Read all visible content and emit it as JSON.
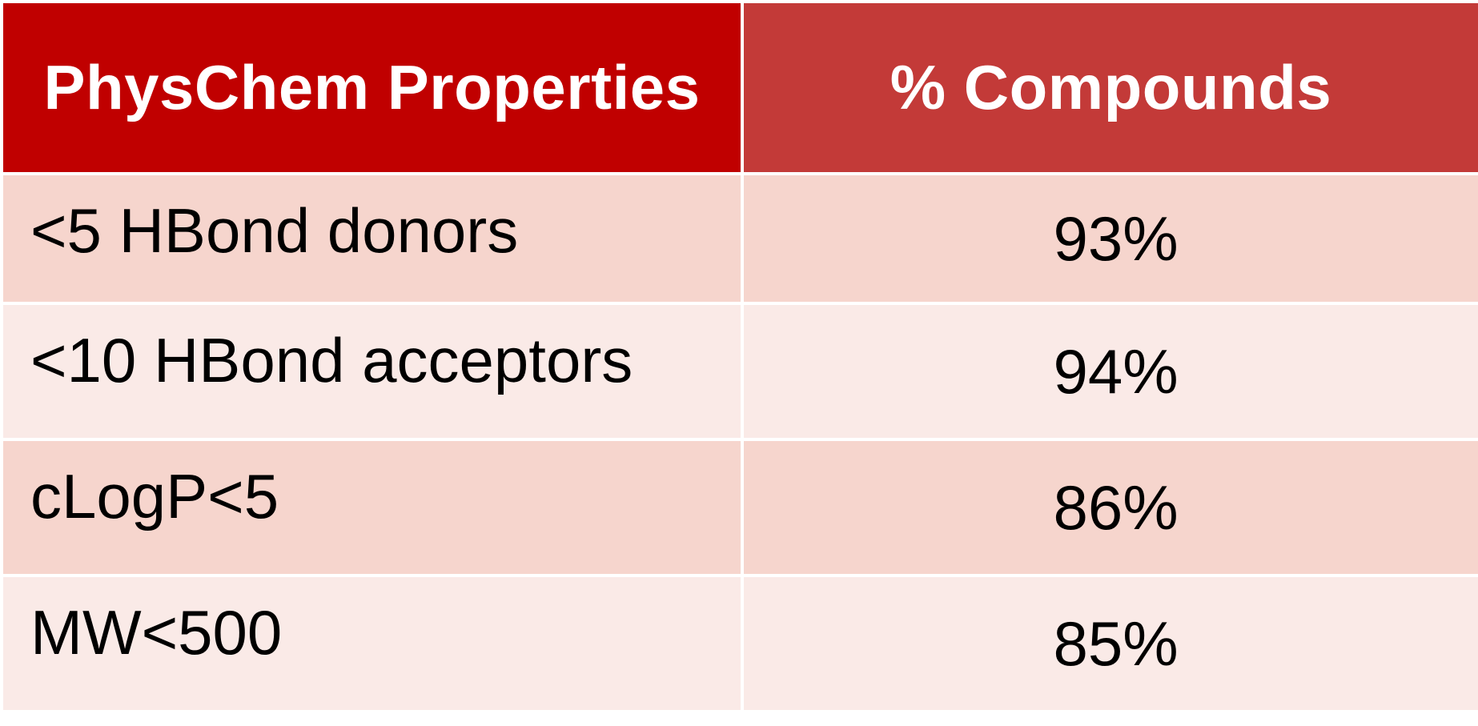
{
  "chart_data": {
    "type": "table",
    "columns": [
      "PhysChem Properties",
      "% Compounds"
    ],
    "rows": [
      {
        "property": "<5 HBond donors",
        "percent": "93%"
      },
      {
        "property": "<10 HBond acceptors",
        "percent": "94%"
      },
      {
        "property": "cLogP<5",
        "percent": "86%"
      },
      {
        "property": "MW<500",
        "percent": "85%"
      }
    ],
    "colors": {
      "header_left": "#c00000",
      "header_right": "#c33a38",
      "row_dark": "#f6d5cd",
      "row_light": "#faeae7"
    }
  }
}
